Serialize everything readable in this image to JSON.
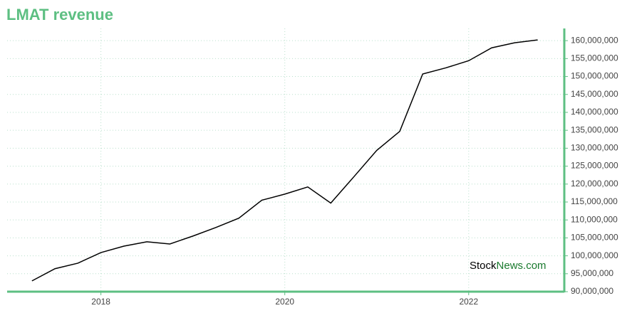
{
  "chart_data": {
    "type": "line",
    "title": "LMAT revenue",
    "x": [
      2017.25,
      2017.5,
      2017.75,
      2018,
      2018.25,
      2018.5,
      2018.75,
      2019,
      2019.25,
      2019.5,
      2019.75,
      2020,
      2020.25,
      2020.5,
      2020.75,
      2021,
      2021.25,
      2021.5,
      2021.75,
      2022,
      2022.25,
      2022.5,
      2022.75
    ],
    "series": [
      {
        "color": "#000000",
        "values": [
          93000000,
          96400000,
          97950000,
          100900000,
          102700000,
          103900000,
          103300000,
          105500000,
          107900000,
          110500000,
          115500000,
          117200000,
          119200000,
          114700000,
          122000000,
          129400000,
          134700000,
          150700000,
          152400000,
          154400000,
          158000000,
          159400000,
          160200000
        ]
      }
    ],
    "xlim": [
      2016.98,
      2023.04
    ],
    "xticks": [
      2018,
      2020,
      2022
    ],
    "ylim": [
      90000000,
      163400000
    ],
    "yticks": [
      {
        "value": 90000000,
        "label": "90,000,000"
      },
      {
        "value": 95000000,
        "label": "95,000,000"
      },
      {
        "value": 100000000,
        "label": "100,000,000"
      },
      {
        "value": 105000000,
        "label": "105,000,000"
      },
      {
        "value": 110000000,
        "label": "110,000,000"
      },
      {
        "value": 115000000,
        "label": "115,000,000"
      },
      {
        "value": 120000000,
        "label": "120,000,000"
      },
      {
        "value": 125000000,
        "label": "125,000,000"
      },
      {
        "value": 130000000,
        "label": "130,000,000"
      },
      {
        "value": 135000000,
        "label": "135,000,000"
      },
      {
        "value": 140000000,
        "label": "140,000,000"
      },
      {
        "value": 145000000,
        "label": "145,000,000"
      },
      {
        "value": 150000000,
        "label": "150,000,000"
      },
      {
        "value": 155000000,
        "label": "155,000,000"
      },
      {
        "value": 160000000,
        "label": "160,000,000"
      }
    ],
    "grid": true,
    "y_axis_side": "right",
    "axis_color": "#5dbf82",
    "watermark": {
      "stock": "Stock",
      "news": "News.com"
    }
  }
}
